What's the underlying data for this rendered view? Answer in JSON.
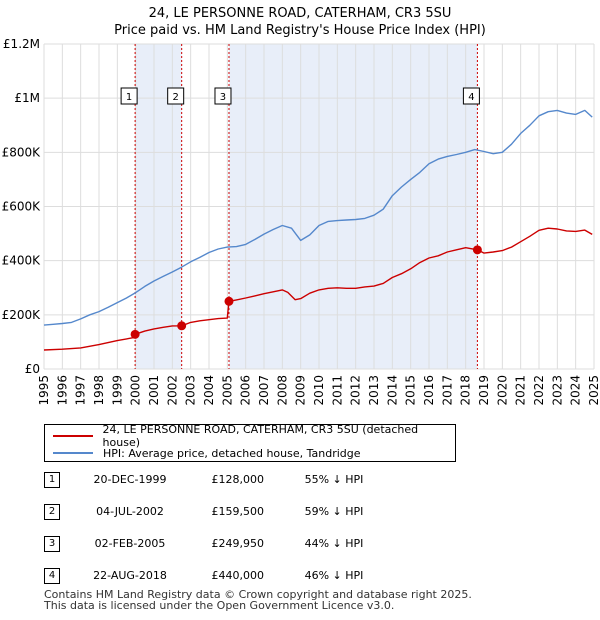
{
  "title_line1": "24, LE PERSONNE ROAD, CATERHAM, CR3 5SU",
  "title_line2": "Price paid vs. HM Land Registry's House Price Index (HPI)",
  "colors": {
    "property": "#cc0000",
    "hpi": "#5588cc",
    "shade": "#e8eef9",
    "grid": "#dddddd"
  },
  "legend": {
    "property_label": "24, LE PERSONNE ROAD, CATERHAM, CR3 5SU (detached house)",
    "hpi_label": "HPI: Average price, detached house, Tandridge"
  },
  "transactions": [
    {
      "num": "1",
      "date": "20-DEC-1999",
      "price": "£128,000",
      "hpi": "55% ↓ HPI"
    },
    {
      "num": "2",
      "date": "04-JUL-2002",
      "price": "£159,500",
      "hpi": "59% ↓ HPI"
    },
    {
      "num": "3",
      "date": "02-FEB-2005",
      "price": "£249,950",
      "hpi": "44% ↓ HPI"
    },
    {
      "num": "4",
      "date": "22-AUG-2018",
      "price": "£440,000",
      "hpi": "46% ↓ HPI"
    }
  ],
  "footer_line1": "Contains HM Land Registry data © Crown copyright and database right 2025.",
  "footer_line2": "This data is licensed under the Open Government Licence v3.0.",
  "chart_data": {
    "type": "line",
    "title": "24, LE PERSONNE ROAD, CATERHAM, CR3 5SU Price paid vs. HM Land Registry's House Price Index (HPI)",
    "xlabel": "",
    "ylabel": "",
    "xlim": [
      1995,
      2025
    ],
    "ylim": [
      0,
      1200000
    ],
    "x_ticks": [
      1995,
      1996,
      1997,
      1998,
      1999,
      2000,
      2001,
      2002,
      2003,
      2004,
      2005,
      2006,
      2007,
      2008,
      2009,
      2010,
      2011,
      2012,
      2013,
      2014,
      2015,
      2016,
      2017,
      2018,
      2019,
      2020,
      2021,
      2022,
      2023,
      2024,
      2025
    ],
    "y_ticks": [
      {
        "value": 0,
        "label": "£0"
      },
      {
        "value": 200000,
        "label": "£200K"
      },
      {
        "value": 400000,
        "label": "£400K"
      },
      {
        "value": 600000,
        "label": "£600K"
      },
      {
        "value": 800000,
        "label": "£800K"
      },
      {
        "value": 1000000,
        "label": "£1M"
      },
      {
        "value": 1200000,
        "label": "£1.2M"
      }
    ],
    "grid": true,
    "shaded_ranges": [
      [
        1999.97,
        2002.51
      ],
      [
        2005.09,
        2018.64
      ]
    ],
    "sale_markers": [
      {
        "label": "1",
        "x": 1999.97,
        "y": 128000
      },
      {
        "label": "2",
        "x": 2002.51,
        "y": 159500
      },
      {
        "label": "3",
        "x": 2005.09,
        "y": 249950
      },
      {
        "label": "4",
        "x": 2018.64,
        "y": 440000
      }
    ],
    "series": [
      {
        "name": "24, LE PERSONNE ROAD, CATERHAM, CR3 5SU (detached house)",
        "color": "#cc0000",
        "x": [
          1995.0,
          1996.0,
          1997.0,
          1998.0,
          1999.0,
          1999.9,
          1999.97,
          2000.5,
          2001.0,
          2001.5,
          2002.0,
          2002.51,
          2003.0,
          2003.5,
          2004.0,
          2004.5,
          2005.0,
          2005.09,
          2005.5,
          2006.0,
          2006.5,
          2007.0,
          2007.5,
          2008.0,
          2008.3,
          2008.7,
          2009.0,
          2009.5,
          2010.0,
          2010.5,
          2011.0,
          2011.5,
          2012.0,
          2012.5,
          2013.0,
          2013.5,
          2014.0,
          2014.5,
          2015.0,
          2015.5,
          2016.0,
          2016.5,
          2017.0,
          2017.5,
          2018.0,
          2018.64,
          2019.0,
          2019.5,
          2020.0,
          2020.5,
          2021.0,
          2021.5,
          2022.0,
          2022.5,
          2023.0,
          2023.5,
          2024.0,
          2024.5,
          2024.9
        ],
        "y": [
          70000,
          73000,
          78000,
          90000,
          105000,
          116000,
          128000,
          140000,
          148000,
          154000,
          159000,
          159500,
          172000,
          178000,
          182000,
          186000,
          188000,
          249950,
          255000,
          262000,
          270000,
          278000,
          285000,
          292000,
          283000,
          256000,
          260000,
          280000,
          292000,
          298000,
          300000,
          298000,
          298000,
          303000,
          306000,
          316000,
          338000,
          352000,
          370000,
          393000,
          410000,
          418000,
          432000,
          440000,
          448000,
          440000,
          428000,
          432000,
          437000,
          450000,
          470000,
          490000,
          512000,
          520000,
          517000,
          510000,
          508000,
          513000,
          497000
        ]
      },
      {
        "name": "HPI: Average price, detached house, Tandridge",
        "color": "#5588cc",
        "x": [
          1995.0,
          1995.5,
          1996.0,
          1996.5,
          1997.0,
          1997.5,
          1998.0,
          1998.5,
          1999.0,
          1999.5,
          2000.0,
          2000.5,
          2001.0,
          2001.5,
          2002.0,
          2002.5,
          2003.0,
          2003.5,
          2004.0,
          2004.5,
          2005.0,
          2005.5,
          2006.0,
          2006.5,
          2007.0,
          2007.5,
          2008.0,
          2008.5,
          2009.0,
          2009.5,
          2010.0,
          2010.5,
          2011.0,
          2011.5,
          2012.0,
          2012.5,
          2013.0,
          2013.5,
          2014.0,
          2014.5,
          2015.0,
          2015.5,
          2016.0,
          2016.5,
          2017.0,
          2017.5,
          2018.0,
          2018.5,
          2019.0,
          2019.5,
          2020.0,
          2020.5,
          2021.0,
          2021.5,
          2022.0,
          2022.5,
          2023.0,
          2023.5,
          2024.0,
          2024.5,
          2024.9
        ],
        "y": [
          162000,
          165000,
          168000,
          172000,
          185000,
          200000,
          212000,
          228000,
          245000,
          262000,
          282000,
          305000,
          325000,
          342000,
          358000,
          376000,
          396000,
          412000,
          430000,
          443000,
          450000,
          452000,
          460000,
          478000,
          498000,
          515000,
          530000,
          520000,
          475000,
          495000,
          530000,
          545000,
          548000,
          550000,
          552000,
          556000,
          568000,
          590000,
          640000,
          672000,
          700000,
          726000,
          758000,
          775000,
          785000,
          792000,
          800000,
          810000,
          803000,
          795000,
          800000,
          830000,
          870000,
          900000,
          935000,
          950000,
          955000,
          945000,
          940000,
          955000,
          930000
        ]
      }
    ]
  }
}
